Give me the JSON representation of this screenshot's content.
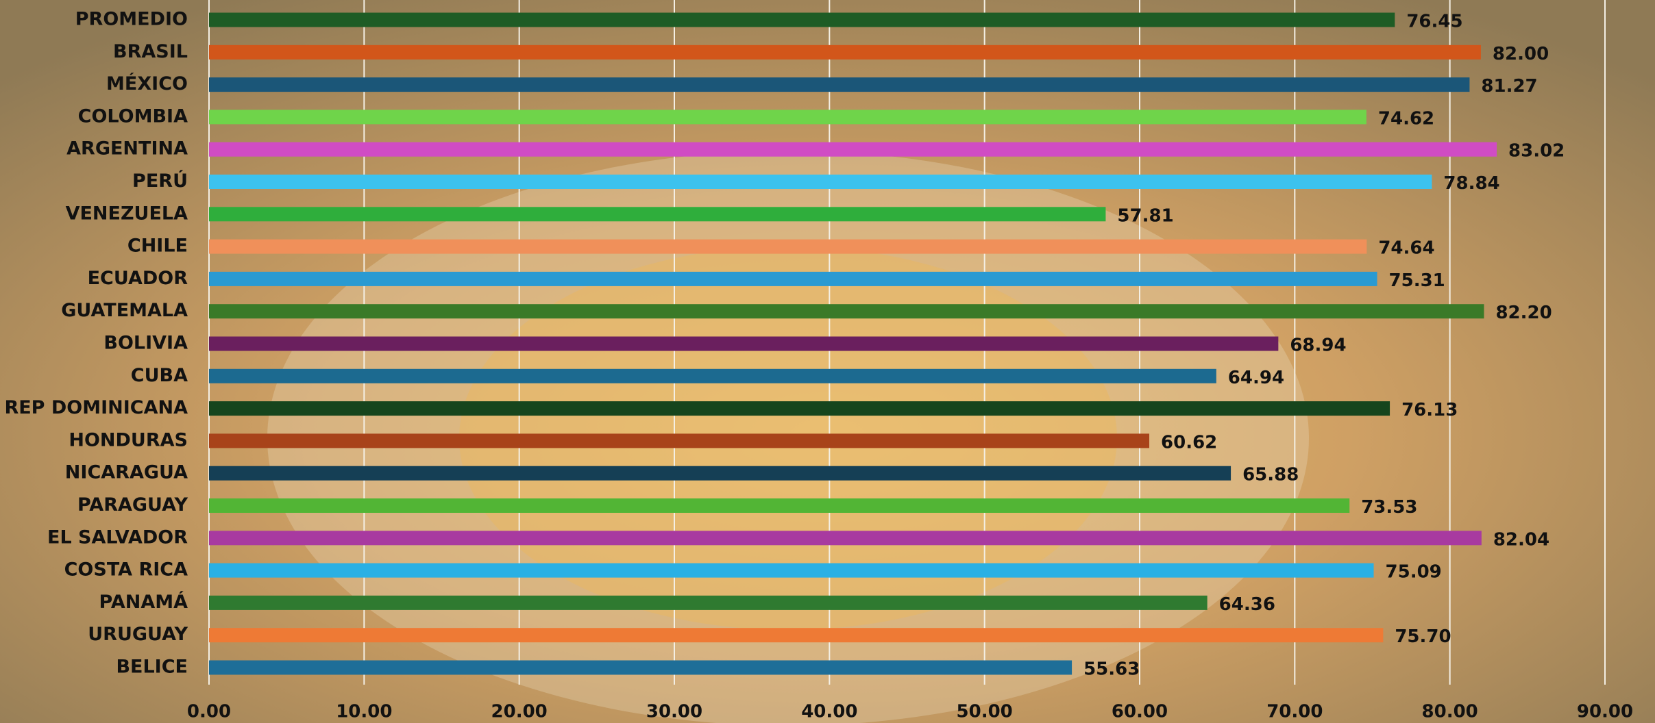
{
  "chart_data": {
    "type": "bar",
    "orientation": "horizontal",
    "categories": [
      "PROMEDIO",
      "BRASIL",
      "MÉXICO",
      "COLOMBIA",
      "ARGENTINA",
      "PERÚ",
      "VENEZUELA",
      "CHILE",
      "ECUADOR",
      "GUATEMALA",
      "BOLIVIA",
      "CUBA",
      "REP DOMINICANA",
      "HONDURAS",
      "NICARAGUA",
      "PARAGUAY",
      "EL SALVADOR",
      "COSTA RICA",
      "PANAMÁ",
      "URUGUAY",
      "BELICE"
    ],
    "values": [
      76.45,
      82.0,
      81.27,
      74.62,
      83.02,
      78.84,
      57.81,
      74.64,
      75.31,
      82.2,
      68.94,
      64.94,
      76.13,
      60.62,
      65.88,
      73.53,
      82.04,
      75.09,
      64.36,
      75.7,
      55.63
    ],
    "value_labels": [
      "76.45",
      "82.00",
      "81.27",
      "74.62",
      "83.02",
      "78.84",
      "57.81",
      "74.64",
      "75.31",
      "82.20",
      "68.94",
      "64.94",
      "76.13",
      "60.62",
      "65.88",
      "73.53",
      "82.04",
      "75.09",
      "64.36",
      "75.70",
      "55.63"
    ],
    "colors": [
      "#1e5c25",
      "#d2561a",
      "#1b5678",
      "#6fd44a",
      "#d04cc4",
      "#3cc2ee",
      "#2fae3c",
      "#f0905a",
      "#2a9ad2",
      "#3a7a28",
      "#6a1f5e",
      "#1c6a90",
      "#16451d",
      "#a8431a",
      "#153f55",
      "#52b535",
      "#a83aa0",
      "#2ab0e4",
      "#2f7a30",
      "#ee7a35",
      "#1e6e98"
    ],
    "xlim": [
      0,
      90
    ],
    "xticks": [
      {
        "value": 0,
        "label": "0.00"
      },
      {
        "value": 10,
        "label": "10.00"
      },
      {
        "value": 20,
        "label": "20.00"
      },
      {
        "value": 30,
        "label": "30.00"
      },
      {
        "value": 40,
        "label": "40.00"
      },
      {
        "value": 50,
        "label": "50.00"
      },
      {
        "value": 60,
        "label": "60.00"
      },
      {
        "value": 70,
        "label": "70.00"
      },
      {
        "value": 80,
        "label": "80.00"
      },
      {
        "value": 90,
        "label": "90.00"
      }
    ],
    "grid": true
  }
}
